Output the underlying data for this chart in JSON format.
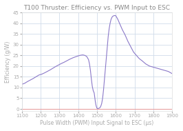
{
  "title": "T100 Thruster: Efficiency vs. PWM Input to ESC",
  "xlabel": "Pulse Width (PWM) Input Signal to ESC (μs)",
  "ylabel": "Efficiency (g/W)",
  "xlim": [
    1100,
    1900
  ],
  "ylim": [
    -1,
    45
  ],
  "xticks": [
    1100,
    1200,
    1300,
    1400,
    1500,
    1600,
    1700,
    1800,
    1900
  ],
  "yticks": [
    0,
    5,
    10,
    15,
    20,
    25,
    30,
    35,
    40,
    45
  ],
  "line_color": "#8A78C8",
  "background_color": "#ffffff",
  "plot_bg_color": "#ffffff",
  "grid_color": "#d0dcea",
  "zero_line_color": "#e8a0a0",
  "title_fontsize": 6.5,
  "label_fontsize": 5.5,
  "tick_fontsize": 5,
  "pwm": [
    1100,
    1115,
    1130,
    1145,
    1160,
    1175,
    1190,
    1205,
    1220,
    1235,
    1250,
    1265,
    1280,
    1295,
    1310,
    1325,
    1340,
    1355,
    1370,
    1385,
    1395,
    1405,
    1415,
    1425,
    1435,
    1445,
    1455,
    1460,
    1465,
    1470,
    1475,
    1480,
    1485,
    1488,
    1491,
    1494,
    1497,
    1500,
    1503,
    1506,
    1510,
    1515,
    1520,
    1525,
    1530,
    1535,
    1540,
    1545,
    1550,
    1555,
    1560,
    1565,
    1570,
    1575,
    1580,
    1585,
    1590,
    1595,
    1600,
    1610,
    1620,
    1635,
    1650,
    1665,
    1680,
    1695,
    1710,
    1725,
    1740,
    1760,
    1780,
    1800,
    1820,
    1840,
    1860,
    1880,
    1900
  ],
  "efficiency": [
    11.5,
    12.0,
    12.8,
    13.5,
    14.2,
    15.0,
    15.8,
    16.2,
    16.8,
    17.5,
    18.2,
    19.0,
    19.8,
    20.5,
    21.2,
    21.8,
    22.5,
    23.2,
    23.8,
    24.3,
    24.6,
    24.9,
    25.1,
    25.2,
    25.0,
    24.5,
    23.0,
    21.0,
    18.0,
    14.0,
    10.5,
    8.5,
    7.5,
    5.5,
    3.5,
    2.0,
    1.0,
    0.3,
    0.2,
    0.2,
    0.3,
    0.5,
    1.2,
    2.5,
    5.0,
    9.0,
    14.0,
    19.0,
    24.0,
    29.0,
    34.0,
    37.5,
    40.0,
    41.8,
    42.8,
    43.3,
    43.5,
    43.6,
    43.5,
    42.0,
    40.0,
    37.0,
    34.5,
    31.5,
    29.0,
    26.5,
    25.0,
    23.5,
    22.5,
    21.0,
    20.0,
    19.5,
    19.0,
    18.5,
    18.0,
    17.5,
    16.5
  ]
}
